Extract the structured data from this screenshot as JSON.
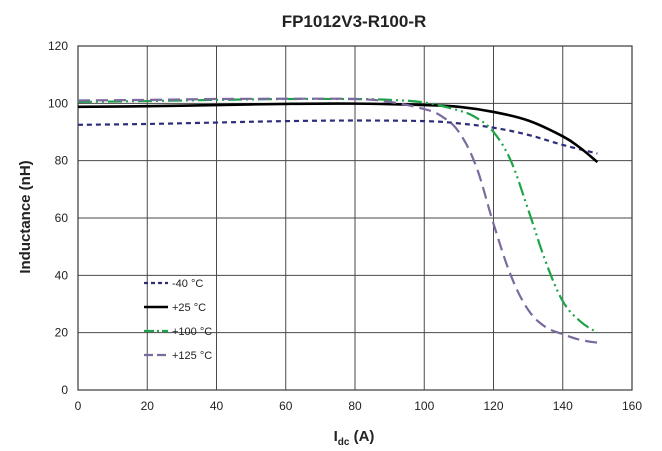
{
  "chart_data": {
    "type": "line",
    "title": "FP1012V3-R100-R",
    "xlabel_main": "I",
    "xlabel_sub": "dc",
    "xlabel_unit": " (A)",
    "ylabel": "Inductance (nH)",
    "xlim": [
      0,
      160
    ],
    "ylim": [
      0,
      120
    ],
    "xticks": [
      0,
      20,
      40,
      60,
      80,
      100,
      120,
      140,
      160
    ],
    "yticks": [
      0,
      20,
      40,
      60,
      80,
      100,
      120
    ],
    "grid": true,
    "legend_position": "lower-left",
    "series": [
      {
        "name": "-40 °C",
        "color": "#2d2d7a",
        "style": "short-dash",
        "points": [
          [
            0,
            92.5
          ],
          [
            20,
            92.8
          ],
          [
            40,
            93.3
          ],
          [
            60,
            93.8
          ],
          [
            80,
            94.0
          ],
          [
            100,
            93.8
          ],
          [
            110,
            93.0
          ],
          [
            120,
            91.5
          ],
          [
            130,
            89.0
          ],
          [
            140,
            85.5
          ],
          [
            150,
            82.5
          ]
        ]
      },
      {
        "name": "+25 °C",
        "color": "#000000",
        "style": "solid",
        "points": [
          [
            0,
            98.8
          ],
          [
            20,
            99.0
          ],
          [
            40,
            99.4
          ],
          [
            60,
            99.8
          ],
          [
            80,
            99.9
          ],
          [
            100,
            99.4
          ],
          [
            110,
            98.8
          ],
          [
            120,
            97.0
          ],
          [
            130,
            94.0
          ],
          [
            140,
            88.5
          ],
          [
            145,
            84.5
          ],
          [
            150,
            79.5
          ]
        ]
      },
      {
        "name": "+100 °C",
        "color": "#1fa34a",
        "style": "dash-dot-dot",
        "points": [
          [
            0,
            100.5
          ],
          [
            20,
            100.8
          ],
          [
            40,
            101.2
          ],
          [
            60,
            101.5
          ],
          [
            80,
            101.5
          ],
          [
            90,
            101.2
          ],
          [
            100,
            100.3
          ],
          [
            110,
            97.5
          ],
          [
            115,
            95.0
          ],
          [
            120,
            90.0
          ],
          [
            125,
            80.0
          ],
          [
            130,
            63.0
          ],
          [
            135,
            45.0
          ],
          [
            140,
            31.0
          ],
          [
            145,
            24.0
          ],
          [
            150,
            20.0
          ]
        ]
      },
      {
        "name": "+125 °C",
        "color": "#7a6a9e",
        "style": "long-dash",
        "points": [
          [
            0,
            101.0
          ],
          [
            20,
            101.2
          ],
          [
            40,
            101.5
          ],
          [
            60,
            101.6
          ],
          [
            80,
            101.5
          ],
          [
            90,
            100.5
          ],
          [
            100,
            98.0
          ],
          [
            105,
            95.5
          ],
          [
            110,
            90.0
          ],
          [
            115,
            78.0
          ],
          [
            120,
            58.0
          ],
          [
            125,
            40.0
          ],
          [
            130,
            28.0
          ],
          [
            135,
            22.0
          ],
          [
            140,
            19.5
          ],
          [
            145,
            17.5
          ],
          [
            150,
            16.5
          ]
        ]
      }
    ]
  }
}
